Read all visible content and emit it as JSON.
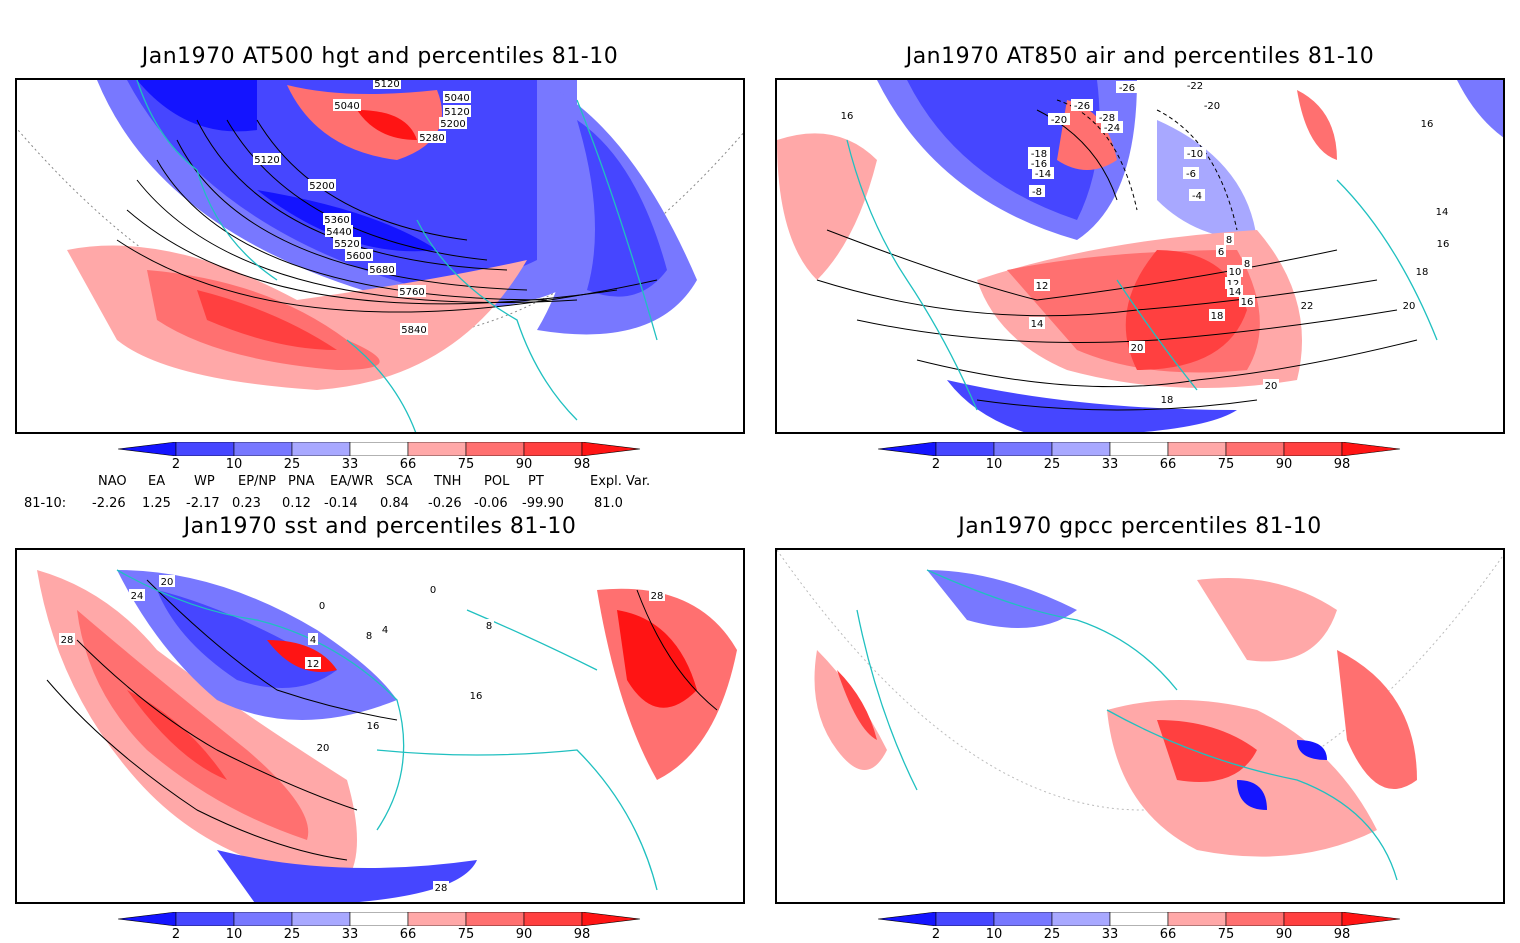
{
  "panels": [
    {
      "title": "Jan1970 AT500 hgt and percentiles 81-10"
    },
    {
      "title": "Jan1970 AT850 air and percentiles 81-10"
    },
    {
      "title": "Jan1970 sst and percentiles 81-10"
    },
    {
      "title": "Jan1970 gpcc percentiles 81-10"
    }
  ],
  "colorbar": {
    "labels": [
      "2",
      "10",
      "25",
      "33",
      "66",
      "75",
      "90",
      "98"
    ],
    "colors": [
      "#1414ff",
      "#4646ff",
      "#7878ff",
      "#a8a8ff",
      "#ffffff",
      "#ffa8a8",
      "#ff7070",
      "#ff4040",
      "#ff1414"
    ]
  },
  "hgt_contours": [
    "5040",
    "5040",
    "5120",
    "5120",
    "5200",
    "5280",
    "5120",
    "5200",
    "5360",
    "5440",
    "5520",
    "5600",
    "5680",
    "5760",
    "5840"
  ],
  "air_contours": [
    "-26",
    "-22",
    "-26",
    "-28",
    "-24",
    "-20",
    "-20",
    "-18",
    "-16",
    "-14",
    "-10",
    "-8",
    "-6",
    "-4",
    "16",
    "16",
    "14",
    "16",
    "18",
    "20",
    "22",
    "12",
    "14",
    "6",
    "8",
    "10",
    "12",
    "14",
    "16",
    "18",
    "20",
    "20",
    "18",
    "8"
  ],
  "sst_contours": [
    "20",
    "24",
    "28",
    "0",
    "0",
    "4",
    "8",
    "4",
    "12",
    "16",
    "20",
    "28",
    "28",
    "8",
    "16"
  ],
  "teleconnections": {
    "row_label": "81-10:",
    "headers": [
      "NAO",
      "EA",
      "WP",
      "EP/NP",
      "PNA",
      "EA/WR",
      "SCA",
      "TNH",
      "POL",
      "PT",
      "Expl. Var."
    ],
    "values": [
      "-2.26",
      "1.25",
      "-2.17",
      "0.23",
      "0.12",
      "-0.14",
      "0.84",
      "-0.26",
      "-0.06",
      "-99.90",
      "81.0"
    ]
  }
}
